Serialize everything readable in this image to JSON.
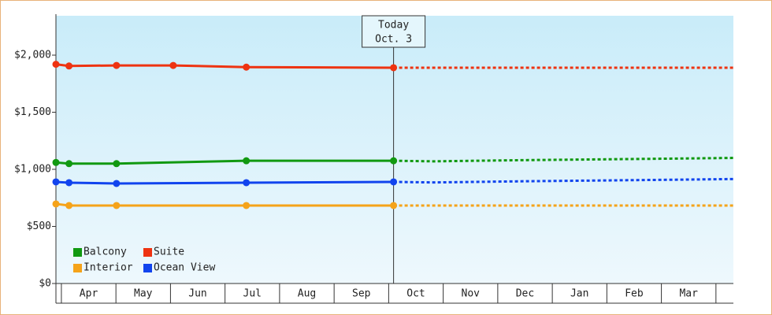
{
  "chart_data": {
    "type": "line",
    "xlim": [
      -0.1,
      12.32
    ],
    "xticks": [
      {
        "value": 0.5,
        "label": "Apr"
      },
      {
        "value": 1.5,
        "label": "May"
      },
      {
        "value": 2.5,
        "label": "Jun"
      },
      {
        "value": 3.5,
        "label": "Jul"
      },
      {
        "value": 4.5,
        "label": "Aug"
      },
      {
        "value": 5.5,
        "label": "Sep"
      },
      {
        "value": 6.5,
        "label": "Oct"
      },
      {
        "value": 7.5,
        "label": "Nov"
      },
      {
        "value": 8.5,
        "label": "Dec"
      },
      {
        "value": 9.5,
        "label": "Jan"
      },
      {
        "value": 10.5,
        "label": "Feb"
      },
      {
        "value": 11.5,
        "label": "Mar"
      }
    ],
    "ylim": [
      0,
      2345
    ],
    "yticks": [
      {
        "value": 0,
        "label": "$0"
      },
      {
        "value": 500,
        "label": "$500"
      },
      {
        "value": 1000,
        "label": "$1,000"
      },
      {
        "value": 1500,
        "label": "$1,500"
      },
      {
        "value": 2000,
        "label": "$2,000"
      }
    ],
    "annotation": {
      "x": 6.09,
      "label": "Today",
      "date": "Oct. 3"
    },
    "legend": "bottom-left",
    "series": [
      {
        "name": "Balcony",
        "color": "#119911",
        "x": [
          -0.1,
          0.14,
          1.01,
          3.39,
          6.09
        ],
        "values": [
          1060,
          1050,
          1050,
          1075,
          1075
        ],
        "forecast_x": [
          6.09,
          6.82,
          8.4,
          11.44,
          12.32
        ],
        "forecast_values": [
          1075,
          1070,
          1080,
          1095,
          1100
        ]
      },
      {
        "name": "Suite",
        "color": "#ee3311",
        "x": [
          -0.1,
          0.14,
          1.01,
          2.05,
          3.39,
          6.09
        ],
        "values": [
          1920,
          1905,
          1910,
          1910,
          1895,
          1890
        ],
        "forecast_x": [
          6.09,
          12.32
        ],
        "forecast_values": [
          1890,
          1890
        ]
      },
      {
        "name": "Interior",
        "color": "#f5a31a",
        "x": [
          -0.1,
          0.14,
          1.01,
          3.39,
          6.09
        ],
        "values": [
          697,
          683,
          683,
          683,
          683
        ],
        "forecast_x": [
          6.09,
          12.32
        ],
        "forecast_values": [
          683,
          683
        ]
      },
      {
        "name": "Ocean View",
        "color": "#1144ee",
        "x": [
          -0.1,
          0.14,
          1.01,
          3.39,
          6.09
        ],
        "values": [
          890,
          883,
          876,
          883,
          890
        ],
        "forecast_x": [
          6.09,
          6.82,
          8.4,
          11.44,
          12.32
        ],
        "forecast_values": [
          890,
          885,
          895,
          910,
          915
        ]
      }
    ]
  }
}
